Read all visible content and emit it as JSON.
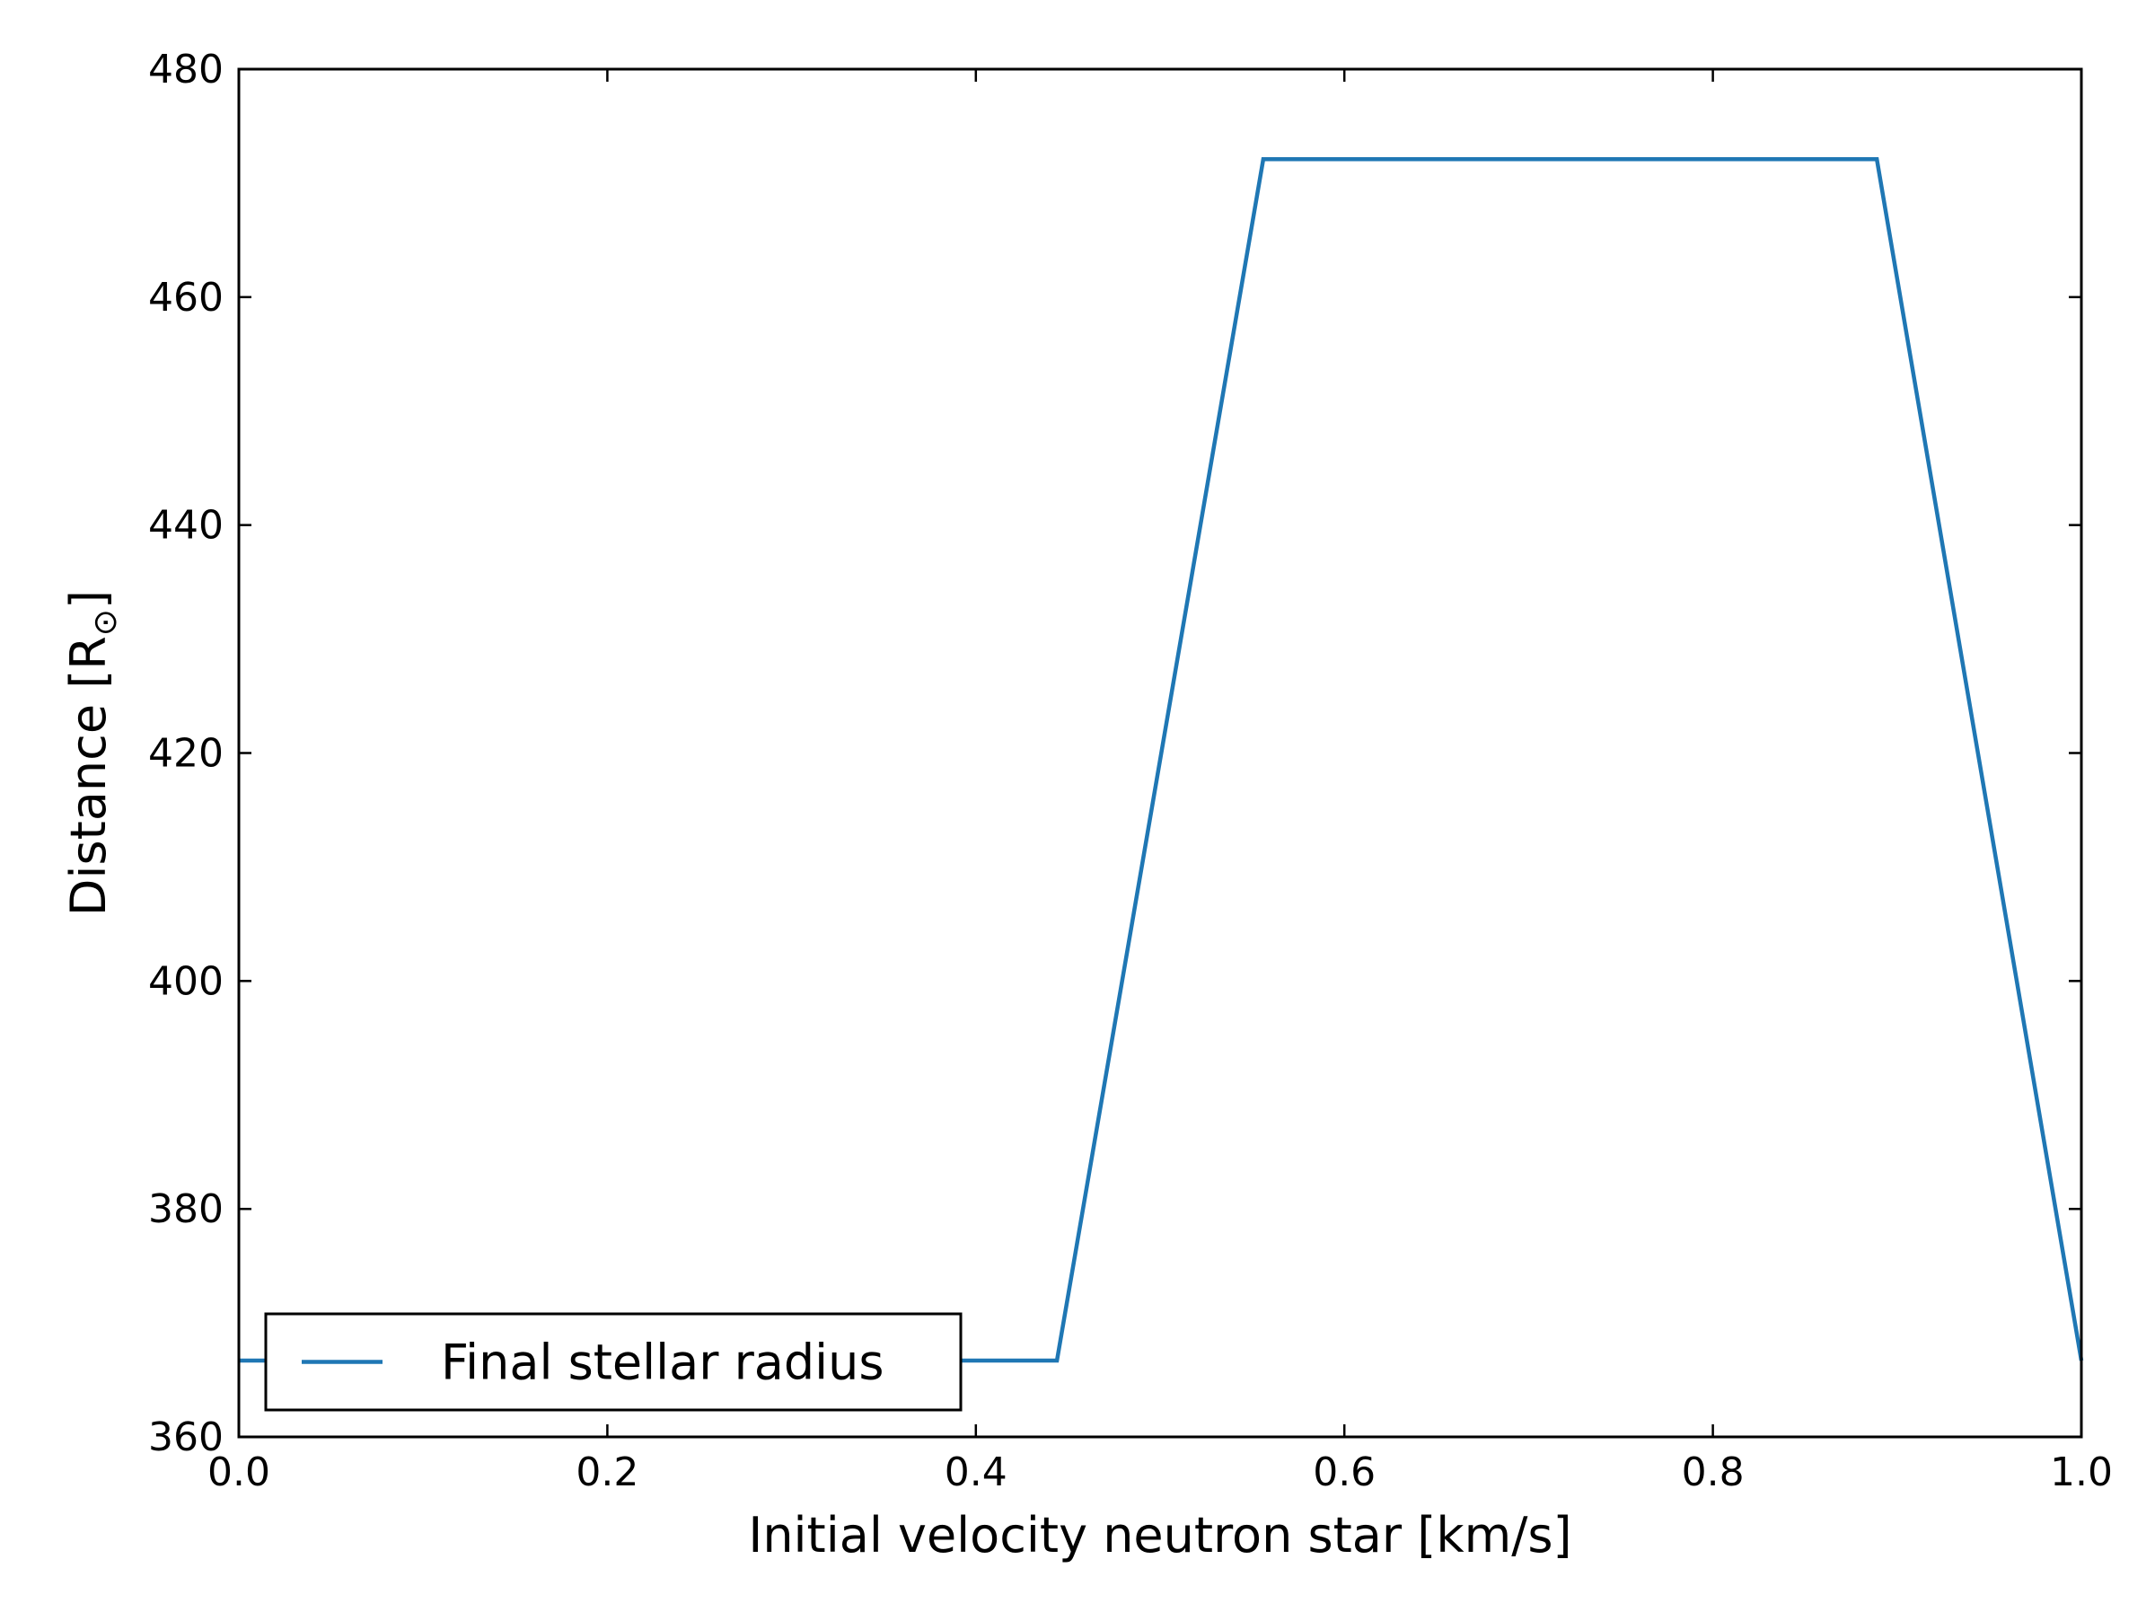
{
  "chart_data": {
    "type": "line",
    "xlabel": "Initial velocity neutron star [km/s]",
    "ylabel_main": "Distance [R",
    "ylabel_sub": "⊙",
    "ylabel_close": "]",
    "xlim": [
      0.0,
      1.0
    ],
    "ylim": [
      360,
      480
    ],
    "xticks": [
      0.0,
      0.2,
      0.4,
      0.6,
      0.8,
      1.0
    ],
    "xtick_labels": [
      "0.0",
      "0.2",
      "0.4",
      "0.6",
      "0.8",
      "1.0"
    ],
    "yticks": [
      360,
      380,
      400,
      420,
      440,
      460,
      480
    ],
    "ytick_labels": [
      "360",
      "380",
      "400",
      "420",
      "440",
      "460",
      "480"
    ],
    "grid": false,
    "legend_position": "lower-left",
    "series": [
      {
        "name": "Final stellar radius",
        "color": "#1f77b4",
        "x": [
          0.0,
          0.444,
          0.556,
          0.889,
          1.0
        ],
        "y": [
          366.7,
          366.7,
          472.1,
          472.1,
          366.7
        ]
      }
    ]
  }
}
